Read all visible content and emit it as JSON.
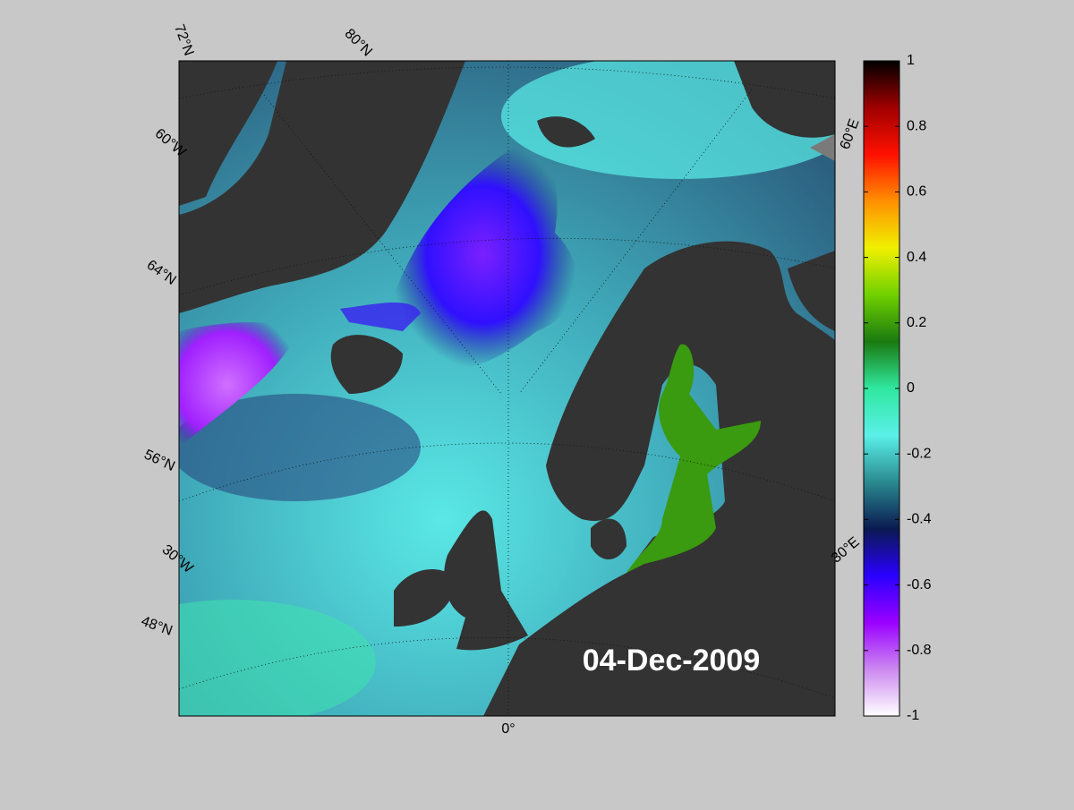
{
  "map": {
    "date_label": "04-Dec-2009",
    "graticule_labels": [
      "72°N",
      "80°N",
      "60°W",
      "64°N",
      "56°N",
      "30°W",
      "48°N",
      "0°",
      "30°E",
      "60°E"
    ]
  },
  "colorbar": {
    "lim": [
      -1,
      1
    ],
    "ticks": [
      -1,
      -0.8,
      -0.6,
      -0.4,
      -0.2,
      0,
      0.2,
      0.4,
      0.6,
      0.8,
      1
    ],
    "colors": [
      "#ffffff",
      "#cc88f0",
      "#9a00ff",
      "#2a00ff",
      "#0a1a50",
      "#2a8a90",
      "#5af0e8",
      "#30e8a0",
      "#1a7a10",
      "#70d000",
      "#f0f000",
      "#ff9000",
      "#ff1000",
      "#a00000",
      "#000000"
    ]
  }
}
